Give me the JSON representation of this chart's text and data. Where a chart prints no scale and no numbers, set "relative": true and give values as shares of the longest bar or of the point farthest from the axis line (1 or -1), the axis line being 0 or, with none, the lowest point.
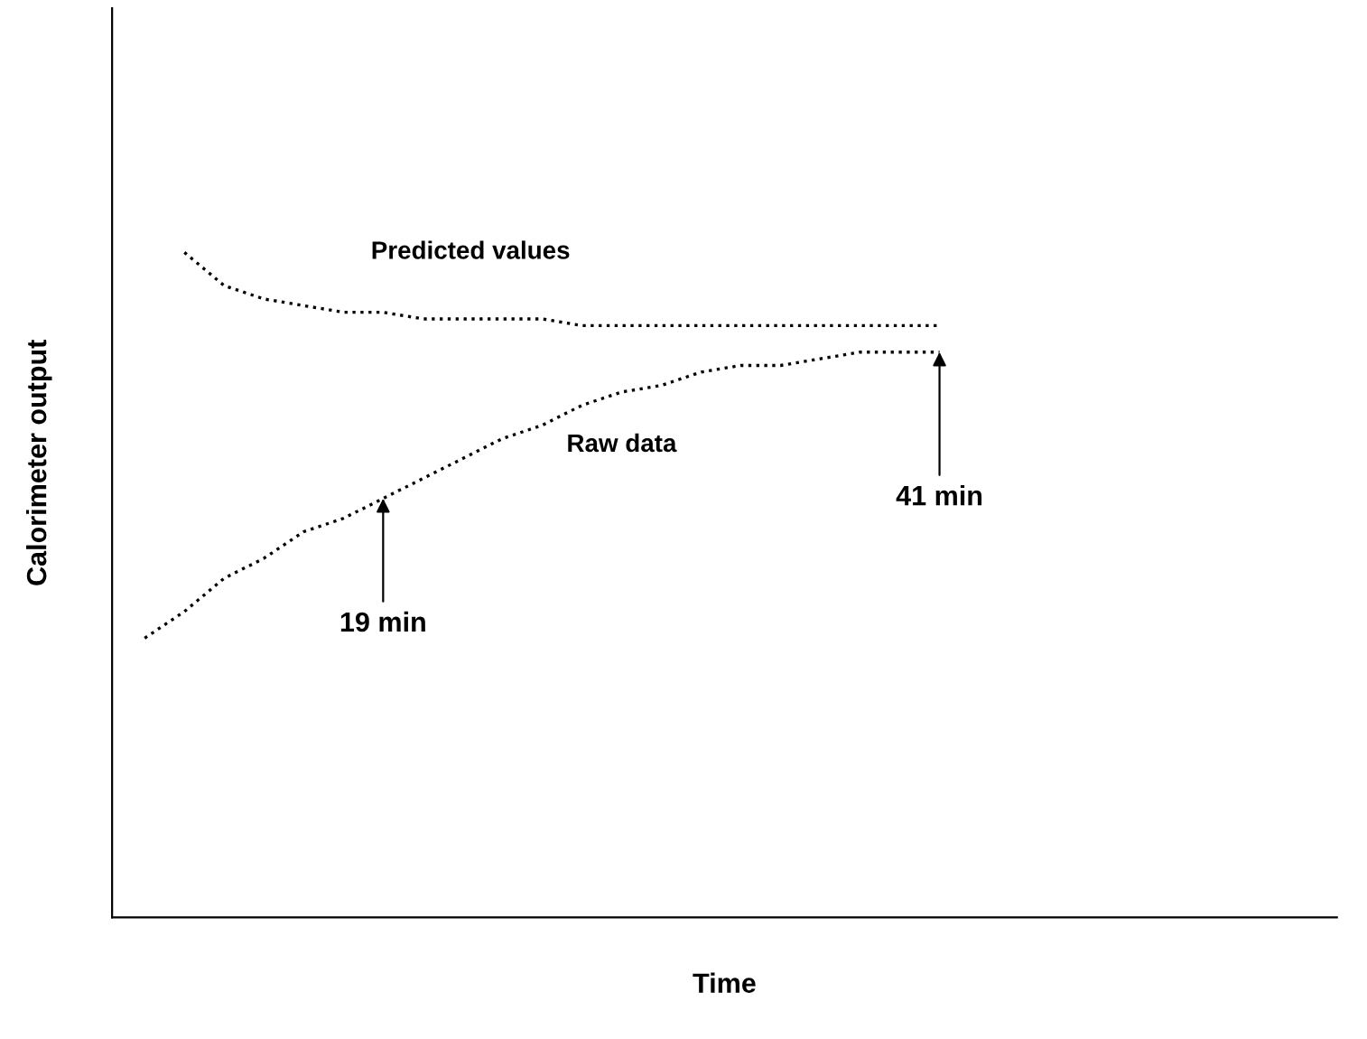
{
  "chart_data": {
    "type": "line",
    "relative": true,
    "xlabel": "Time",
    "ylabel": "Calorimeter output",
    "categories": [
      null,
      null,
      null,
      null,
      null,
      null,
      null,
      null,
      null,
      null,
      null,
      null,
      null,
      null,
      null,
      null,
      null,
      null,
      null,
      null,
      null
    ],
    "series": [
      {
        "name": "Predicted values",
        "color": "#000000",
        "values": [
          null,
          1.0,
          0.95,
          0.93,
          0.92,
          0.91,
          0.91,
          0.9,
          0.9,
          0.9,
          0.9,
          0.89,
          0.89,
          0.89,
          0.89,
          0.89,
          0.89,
          0.89,
          0.89,
          0.89,
          0.89
        ]
      },
      {
        "name": "Raw data",
        "color": "#000000",
        "values": [
          0.42,
          0.46,
          0.51,
          0.54,
          0.58,
          0.6,
          0.63,
          0.66,
          0.69,
          0.72,
          0.74,
          0.77,
          0.79,
          0.8,
          0.82,
          0.83,
          0.83,
          0.84,
          0.85,
          0.85,
          0.85
        ]
      }
    ],
    "annotations": [
      "19 min",
      "41 min"
    ],
    "line_style": "dotted",
    "marker": "none",
    "legend": false
  }
}
